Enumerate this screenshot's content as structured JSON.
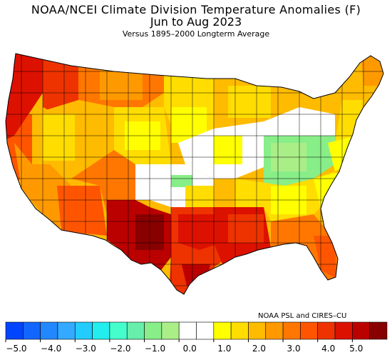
{
  "titles": {
    "line1": "NOAA/NCEI Climate Division Temperature Anomalies (F)",
    "line2": "Jun to Aug 2023",
    "line3": "Versus 1895–2000 Longterm Average"
  },
  "credit": "NOAA PSL and CIRES–CU",
  "colorbar": {
    "colors": [
      "#0044ff",
      "#1166ff",
      "#2288ff",
      "#33aaff",
      "#22ccff",
      "#22eeee",
      "#44ffcc",
      "#66eeaa",
      "#88ee88",
      "#aaee88",
      "#ffffff",
      "#ffffff",
      "#ffff00",
      "#ffdd00",
      "#ffbb00",
      "#ff9900",
      "#ff7700",
      "#ff5500",
      "#ee3300",
      "#dd1100",
      "#bb0000",
      "#880000"
    ],
    "tick_labels": [
      "−5.0",
      "−4.0",
      "−3.0",
      "−2.0",
      "−1.0",
      "0.0",
      "1.0",
      "2.0",
      "3.0",
      "4.0",
      "5.0"
    ],
    "range": [
      -5.0,
      5.0
    ],
    "units": "F"
  },
  "map_regions": [
    {
      "region": "Pacific Northwest coast",
      "color": "#dd1100"
    },
    {
      "region": "Northern Rockies",
      "color": "#ff7700"
    },
    {
      "region": "Great Basin",
      "color": "#ffbb00"
    },
    {
      "region": "California interior",
      "color": "#ff9900"
    },
    {
      "region": "Desert Southwest",
      "color": "#ff5500"
    },
    {
      "region": "West Texas / New Mexico",
      "color": "#bb0000"
    },
    {
      "region": "South Texas / Gulf coast",
      "color": "#dd1100"
    },
    {
      "region": "Central Plains",
      "color": "#ffffff"
    },
    {
      "region": "Ohio Valley",
      "color": "#88ee88"
    },
    {
      "region": "Upper Midwest",
      "color": "#ffdd00"
    },
    {
      "region": "Northeast",
      "color": "#ffbb00"
    },
    {
      "region": "Florida",
      "color": "#ff7700"
    },
    {
      "region": "Southeast",
      "color": "#ffdd00"
    }
  ]
}
